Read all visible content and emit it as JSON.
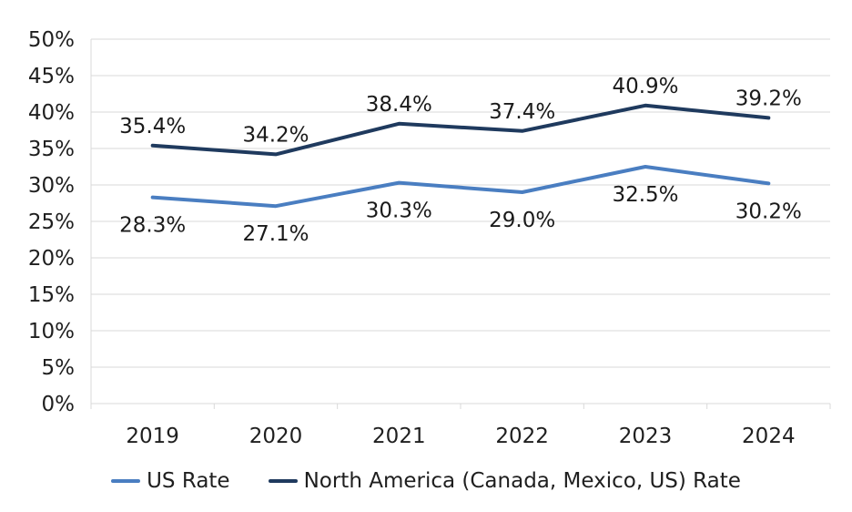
{
  "chart_data": {
    "type": "line",
    "categories": [
      "2019",
      "2020",
      "2021",
      "2022",
      "2023",
      "2024"
    ],
    "series": [
      {
        "name": "US Rate",
        "color": "#4A7EC1",
        "values": [
          28.3,
          27.1,
          30.3,
          29.0,
          32.5,
          30.2
        ],
        "data_labels": [
          "28.3%",
          "27.1%",
          "30.3%",
          "29.0%",
          "32.5%",
          "30.2%"
        ],
        "label_position": "below"
      },
      {
        "name": "North America (Canada, Mexico, US) Rate",
        "color": "#1F3A5E",
        "values": [
          35.4,
          34.2,
          38.4,
          37.4,
          40.9,
          39.2
        ],
        "data_labels": [
          "35.4%",
          "34.2%",
          "38.4%",
          "37.4%",
          "40.9%",
          "39.2%"
        ],
        "label_position": "above"
      }
    ],
    "title": "",
    "xlabel": "",
    "ylabel": "",
    "ylim": [
      0,
      50
    ],
    "y_tick_step": 5,
    "y_tick_labels": [
      "0%",
      "5%",
      "10%",
      "15%",
      "20%",
      "25%",
      "30%",
      "35%",
      "40%",
      "45%",
      "50%"
    ],
    "grid": "horizontal",
    "grid_color": "#D9D9D9",
    "legend_position": "bottom",
    "text_color": "#1f1f1f"
  },
  "legend": {
    "items": [
      {
        "label": "US Rate"
      },
      {
        "label": "North America (Canada, Mexico, US) Rate"
      }
    ]
  }
}
